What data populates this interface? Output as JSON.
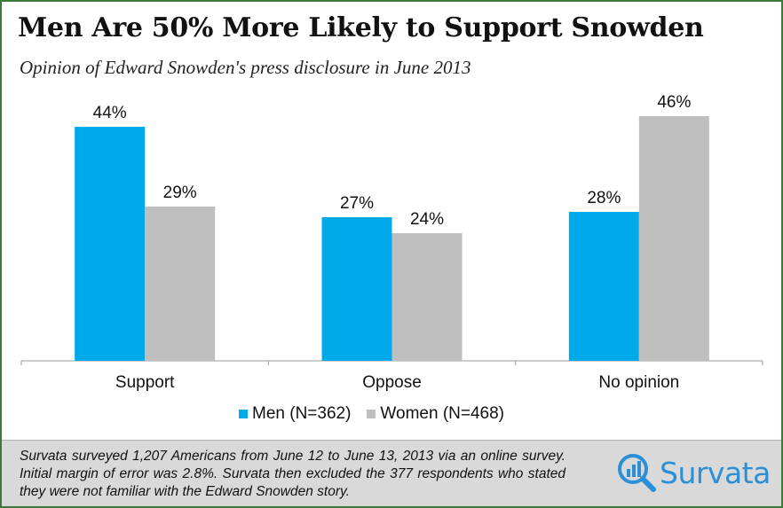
{
  "title": "Men Are 50% More Likely to Support Snowden",
  "subtitle": "Opinion of Edward Snowden's press disclosure in June 2013",
  "chart_data": {
    "type": "bar",
    "categories": [
      "Support",
      "Oppose",
      "No opinion"
    ],
    "series": [
      {
        "name": "Men (N=362)",
        "values": [
          44,
          27,
          28
        ],
        "labels": [
          "44%",
          "27%",
          "28%"
        ],
        "color": "#00aaea"
      },
      {
        "name": "Women (N=468)",
        "values": [
          29,
          24,
          46
        ],
        "labels": [
          "29%",
          "24%",
          "46%"
        ],
        "color": "#bfbfbf"
      }
    ],
    "ylim": [
      0,
      50
    ],
    "grid": false,
    "legend_position": "bottom"
  },
  "footer": {
    "note": "Survata surveyed 1,207 Americans from June 12 to June 13, 2013 via an online survey. Initial margin of error was 2.8%. Survata then excluded the 377 respondents who stated they were not familiar with the Edward Snowden story.",
    "logo_text": "Survata"
  },
  "colors": {
    "frame_border": "#3c7a3c",
    "footer_bg": "#d9d9d9",
    "logo_blue": "#2a8fd6"
  }
}
